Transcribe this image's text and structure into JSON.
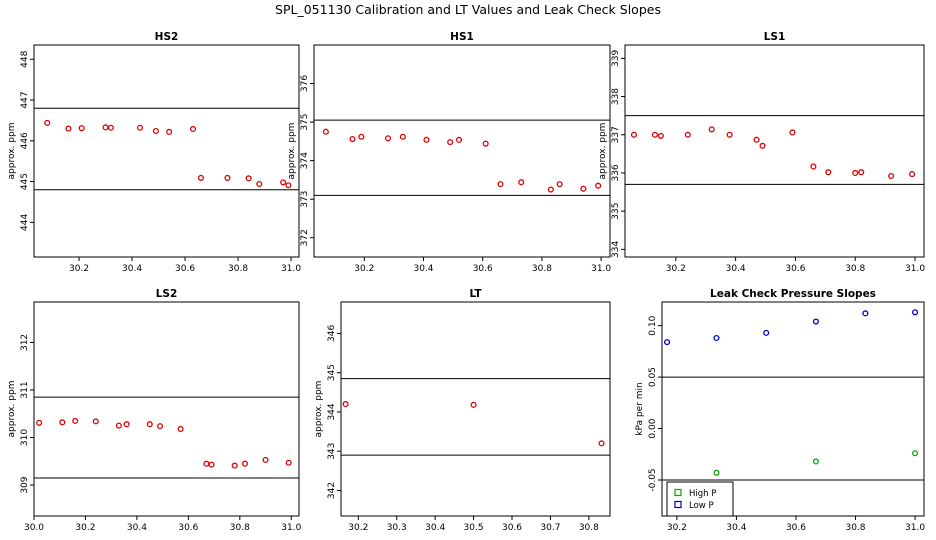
{
  "figure_title": "SPL_051130  Calibration and LT Values and Leak Check Slopes",
  "colors": {
    "red": "#e00000",
    "blue": "#0000cc",
    "green": "#00aa00",
    "ink": "#000000"
  },
  "chart_data": [
    {
      "id": "hs2",
      "type": "scatter",
      "title": "HS2",
      "ylabel": "approx. ppm",
      "xlim": [
        30.03,
        31.03
      ],
      "ylim": [
        443.15,
        448.35
      ],
      "xticks": [
        30.2,
        30.4,
        30.6,
        30.8,
        31.0
      ],
      "xtick_labels": [
        "30.2",
        "30.4",
        "30.6",
        "30.8",
        "31.0"
      ],
      "yticks": [
        444,
        445,
        446,
        447,
        448
      ],
      "ytick_labels": [
        "444",
        "445",
        "446",
        "447",
        "448"
      ],
      "hlines": [
        446.8,
        444.8
      ],
      "series": [
        {
          "name": "cal",
          "color": "red",
          "marker": "circle",
          "x": [
            30.08,
            30.16,
            30.21,
            30.3,
            30.32,
            30.43,
            30.49,
            30.54,
            30.63,
            30.66,
            30.76,
            30.84,
            30.88,
            30.97,
            30.99
          ],
          "y": [
            446.44,
            446.3,
            446.31,
            446.33,
            446.32,
            446.32,
            446.24,
            446.22,
            446.29,
            445.09,
            445.09,
            445.08,
            444.94,
            444.98,
            444.91
          ]
        }
      ]
    },
    {
      "id": "hs1",
      "type": "scatter",
      "title": "HS1",
      "ylabel": "approx. ppm",
      "xlim": [
        30.03,
        31.03
      ],
      "ylim": [
        371.5,
        377.0
      ],
      "xticks": [
        30.2,
        30.4,
        30.6,
        30.8,
        31.0
      ],
      "xtick_labels": [
        "30.2",
        "30.4",
        "30.6",
        "30.8",
        "31.0"
      ],
      "yticks": [
        372,
        373,
        374,
        375,
        376
      ],
      "ytick_labels": [
        "372",
        "373",
        "374",
        "375",
        "376"
      ],
      "hlines": [
        375.05,
        373.1
      ],
      "series": [
        {
          "name": "cal",
          "color": "red",
          "marker": "circle",
          "x": [
            30.07,
            30.16,
            30.19,
            30.28,
            30.33,
            30.41,
            30.49,
            30.52,
            30.61,
            30.66,
            30.73,
            30.83,
            30.86,
            30.94,
            30.99
          ],
          "y": [
            374.75,
            374.56,
            374.62,
            374.58,
            374.62,
            374.54,
            374.48,
            374.54,
            374.44,
            373.39,
            373.44,
            373.25,
            373.39,
            373.27,
            373.35
          ]
        }
      ]
    },
    {
      "id": "ls1",
      "type": "scatter",
      "title": "LS1",
      "ylabel": "approx. ppm",
      "xlim": [
        30.03,
        31.03
      ],
      "ylim": [
        333.8,
        339.35
      ],
      "xticks": [
        30.2,
        30.4,
        30.6,
        30.8,
        31.0
      ],
      "xtick_labels": [
        "30.2",
        "30.4",
        "30.6",
        "30.8",
        "31.0"
      ],
      "yticks": [
        334,
        335,
        336,
        337,
        338,
        339
      ],
      "ytick_labels": [
        "334",
        "335",
        "336",
        "337",
        "338",
        "339"
      ],
      "hlines": [
        337.5,
        335.7
      ],
      "series": [
        {
          "name": "cal",
          "color": "red",
          "marker": "circle",
          "x": [
            30.06,
            30.13,
            30.15,
            30.24,
            30.32,
            30.38,
            30.47,
            30.49,
            30.59,
            30.66,
            30.71,
            30.8,
            30.82,
            30.92,
            30.99
          ],
          "y": [
            337.0,
            337.0,
            336.97,
            337.0,
            337.14,
            337.0,
            336.87,
            336.71,
            337.06,
            336.17,
            336.02,
            336.0,
            336.02,
            335.92,
            335.97
          ]
        }
      ]
    },
    {
      "id": "ls2",
      "type": "scatter",
      "title": "LS2",
      "ylabel": "approx. ppm",
      "xlim": [
        30.0,
        31.03
      ],
      "ylim": [
        308.35,
        312.85
      ],
      "xticks": [
        30.0,
        30.2,
        30.4,
        30.6,
        30.8,
        31.0
      ],
      "xtick_labels": [
        "30.0",
        "30.2",
        "30.4",
        "30.6",
        "30.8",
        "31.0"
      ],
      "yticks": [
        309,
        310,
        311,
        312
      ],
      "ytick_labels": [
        "309",
        "310",
        "311",
        "312"
      ],
      "hlines": [
        310.85,
        309.15
      ],
      "series": [
        {
          "name": "cal",
          "color": "red",
          "marker": "circle",
          "x": [
            30.02,
            30.11,
            30.16,
            30.24,
            30.33,
            30.36,
            30.45,
            30.49,
            30.57,
            30.67,
            30.69,
            30.78,
            30.82,
            30.9,
            30.99
          ],
          "y": [
            310.31,
            310.32,
            310.35,
            310.34,
            310.25,
            310.28,
            310.28,
            310.24,
            310.18,
            309.45,
            309.43,
            309.41,
            309.45,
            309.53,
            309.47
          ]
        }
      ]
    },
    {
      "id": "lt",
      "type": "scatter",
      "title": "LT",
      "ylabel": "approx. ppm",
      "xlim": [
        30.155,
        30.855
      ],
      "ylim": [
        341.35,
        346.8
      ],
      "xticks": [
        30.2,
        30.3,
        30.4,
        30.5,
        30.6,
        30.7,
        30.8
      ],
      "xtick_labels": [
        "30.2",
        "30.3",
        "30.4",
        "30.5",
        "30.6",
        "30.7",
        "30.8"
      ],
      "yticks": [
        342,
        343,
        344,
        345,
        346
      ],
      "ytick_labels": [
        "342",
        "343",
        "344",
        "345",
        "346"
      ],
      "hlines": [
        344.85,
        342.9
      ],
      "series": [
        {
          "name": "lt",
          "color": "red",
          "marker": "circle",
          "x": [
            30.167,
            30.5,
            30.833
          ],
          "y": [
            344.2,
            344.18,
            343.2
          ]
        }
      ]
    },
    {
      "id": "leak",
      "type": "scatter",
      "title": "Leak Check Pressure Slopes",
      "ylabel": "kPa per min",
      "xlim": [
        30.15,
        31.03
      ],
      "ylim": [
        -0.085,
        0.123
      ],
      "xticks": [
        30.2,
        30.4,
        30.6,
        30.8,
        31.0
      ],
      "xtick_labels": [
        "30.2",
        "30.4",
        "30.6",
        "30.8",
        "31.0"
      ],
      "yticks": [
        -0.05,
        0.0,
        0.05,
        0.1
      ],
      "ytick_labels": [
        "-0.05",
        "0.00",
        "0.05",
        "0.10"
      ],
      "hlines": [
        0.05,
        -0.05
      ],
      "series": [
        {
          "name": "Low P",
          "color": "blue",
          "marker": "circle",
          "x": [
            30.167,
            30.333,
            30.5,
            30.667,
            30.833,
            31.0
          ],
          "y": [
            0.084,
            0.088,
            0.093,
            0.104,
            0.112,
            0.113
          ]
        },
        {
          "name": "High P",
          "color": "green",
          "marker": "circle",
          "x": [
            30.333,
            30.667,
            31.0
          ],
          "y": [
            -0.043,
            -0.032,
            -0.024
          ]
        }
      ],
      "legend": {
        "position": "bottom-left",
        "entries": [
          {
            "label": "High P",
            "color": "green"
          },
          {
            "label": "Low P",
            "color": "blue"
          }
        ]
      }
    }
  ]
}
